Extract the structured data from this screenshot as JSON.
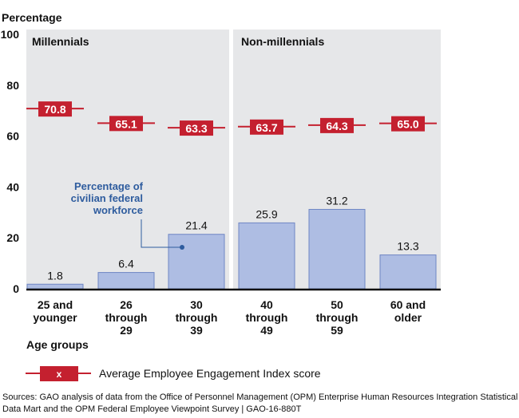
{
  "chart_data": {
    "type": "bar",
    "title": "",
    "ylabel": "Percentage",
    "xlabel": "Age groups",
    "ylim": [
      0,
      100
    ],
    "yticks": [
      "0",
      "20",
      "40",
      "60",
      "80",
      "100"
    ],
    "categories": [
      [
        "25 and",
        "younger"
      ],
      [
        "26",
        "through",
        "29"
      ],
      [
        "30",
        "through",
        "39"
      ],
      [
        "40",
        "through",
        "49"
      ],
      [
        "50",
        "through",
        "59"
      ],
      [
        "60 and",
        "older"
      ]
    ],
    "panels": [
      {
        "label": "Millennials",
        "categories": [
          0,
          1,
          2
        ]
      },
      {
        "label": "Non-millennials",
        "categories": [
          3,
          4,
          5
        ]
      }
    ],
    "series": [
      {
        "name": "Percentage of civilian federal workforce",
        "type": "bar",
        "values": [
          1.8,
          6.4,
          21.4,
          25.9,
          31.2,
          13.3
        ],
        "labels": [
          "1.8",
          "6.4",
          "21.4",
          "25.9",
          "31.2",
          "13.3"
        ],
        "color": "#aebde3"
      },
      {
        "name": "Average Employee Engagement Index score",
        "type": "marker",
        "values": [
          70.8,
          65.1,
          63.3,
          63.7,
          64.3,
          65.0
        ],
        "labels": [
          "70.8",
          "65.1",
          "63.3",
          "63.7",
          "64.3",
          "65.0"
        ],
        "color": "#c4202f"
      }
    ],
    "annotation": {
      "lines": [
        "Percentage of",
        "civilian federal",
        "workforce"
      ],
      "color": "#2e5c9e"
    },
    "legend": {
      "marker_label": "x",
      "text": "Average Employee Engagement Index score",
      "placement": "bottom-left"
    }
  },
  "source": {
    "lines": [
      "Sources: GAO analysis of data from the Office of Personnel Management (OPM) Enterprise Human Resources Integration Statistical",
      "Data Mart and the OPM Federal Employee Viewpoint Survey  |  GAO-16-880T"
    ]
  }
}
